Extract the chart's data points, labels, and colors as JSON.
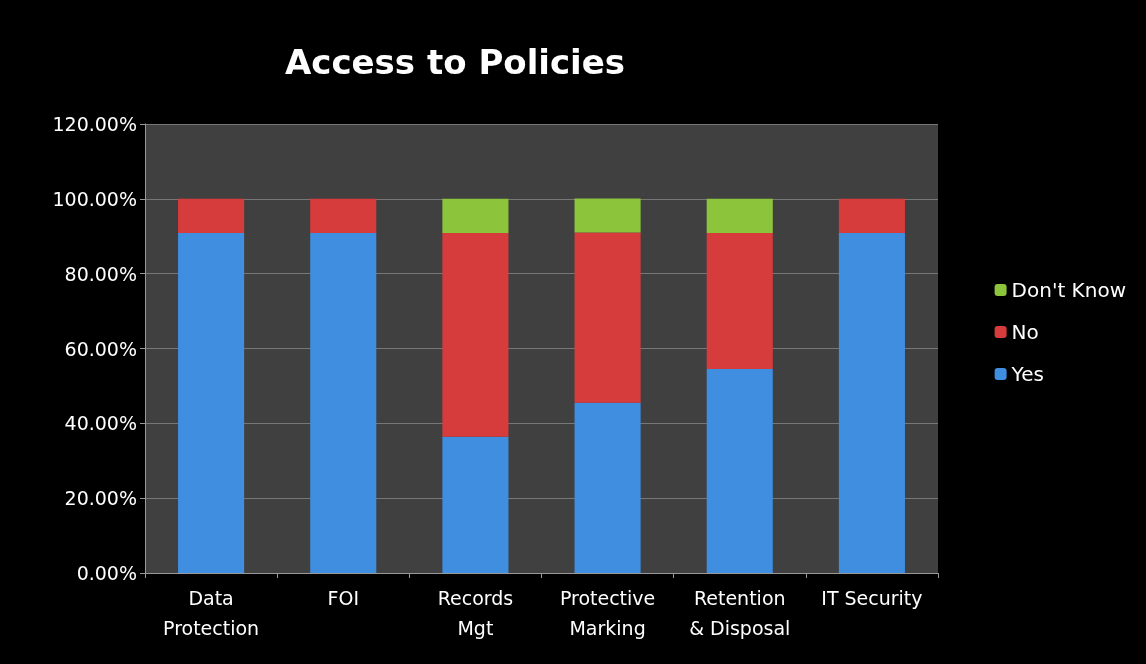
{
  "chart_data": {
    "type": "bar",
    "title": "Access to Policies",
    "categories": [
      "Data\nProtection",
      "FOI",
      "Records\nMgt",
      "Protective\nMarking",
      "Retention\n& Disposal",
      "IT Security"
    ],
    "stacked": true,
    "series": [
      {
        "name": "Yes",
        "color": "#3f8ee0",
        "values": [
          90.9,
          90.9,
          36.4,
          45.5,
          54.5,
          90.9
        ]
      },
      {
        "name": "No",
        "color": "#d63c3c",
        "values": [
          9.1,
          9.1,
          54.5,
          45.5,
          36.4,
          9.1
        ]
      },
      {
        "name": "Don't Know",
        "color": "#8cc43c",
        "values": [
          null,
          null,
          9.1,
          9.1,
          9.1,
          null
        ]
      }
    ],
    "ylim": [
      0,
      120
    ],
    "yticks": [
      {
        "value": 0,
        "label": "0.00%"
      },
      {
        "value": 20,
        "label": "20.00%"
      },
      {
        "value": 40,
        "label": "40.00%"
      },
      {
        "value": 60,
        "label": "60.00%"
      },
      {
        "value": 80,
        "label": "80.00%"
      },
      {
        "value": 100,
        "label": "100.00%"
      },
      {
        "value": 120,
        "label": "120.00%"
      }
    ],
    "grid": "y",
    "legend": "right"
  }
}
